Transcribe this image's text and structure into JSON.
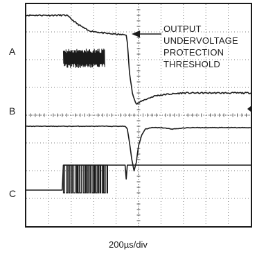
{
  "chart_data": {
    "type": "line",
    "title": "",
    "xlabel": "200µs/div",
    "ylabel": "",
    "x_unit": "µs",
    "xlim": [
      0,
      2000
    ],
    "grid": true,
    "grid_divisions": {
      "x": 10,
      "y": 8
    },
    "channels": [
      {
        "name": "A",
        "marker_level_div": 5.3
      },
      {
        "name": "B",
        "marker_level_div": 3.6
      },
      {
        "name": "C",
        "marker_level_div": 1.4
      }
    ],
    "annotation": {
      "lines": [
        "OUTPUT",
        "UNDERVOLTAGE",
        "PROTECTION",
        "THRESHOLD"
      ],
      "arrow": "left"
    },
    "series": [
      {
        "name": "A",
        "units": "div",
        "x": [
          0,
          360,
          450,
          550,
          700,
          850,
          890,
          900,
          920,
          945,
          980,
          1050,
          1150,
          1250,
          1400,
          2000
        ],
        "values": [
          7.6,
          7.6,
          7.3,
          7.05,
          6.95,
          6.9,
          6.9,
          6.6,
          5.5,
          4.8,
          4.4,
          4.55,
          4.7,
          4.75,
          4.8,
          4.8
        ]
      },
      {
        "name": "A ripple",
        "units": "div",
        "x_start": 330,
        "x_end": 700,
        "center": 6.05,
        "amplitude": 0.35
      },
      {
        "name": "B",
        "units": "div",
        "x": [
          0,
          880,
          900,
          920,
          940,
          960,
          980,
          1000,
          1030,
          1060,
          1120,
          1200,
          1300,
          1450,
          2000
        ],
        "values": [
          3.6,
          3.6,
          3.5,
          3.0,
          2.4,
          2.0,
          2.3,
          2.9,
          3.3,
          3.5,
          3.55,
          3.55,
          3.5,
          3.55,
          3.55
        ]
      },
      {
        "name": "C",
        "units": "div",
        "x": [
          0,
          320,
          330,
          880,
          890,
          900,
          1000,
          2000
        ],
        "values": [
          1.3,
          1.3,
          2.2,
          2.2,
          1.7,
          2.2,
          2.2,
          2.2
        ]
      },
      {
        "name": "C pulses",
        "units": "div",
        "x_start": 330,
        "x_end": 720,
        "high": 2.2,
        "low": 1.2
      }
    ]
  }
}
